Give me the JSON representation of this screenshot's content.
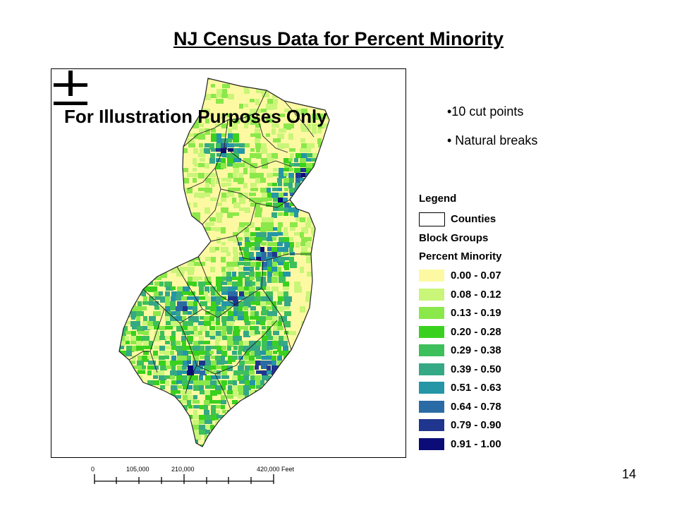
{
  "slide": {
    "title": "NJ Census Data for Percent Minority",
    "page_number": "14"
  },
  "map": {
    "watermark": "For Illustration Purposes Only",
    "north_arrow_icon": "north-arrow-icon",
    "scale_bar": {
      "labels": [
        "0",
        "105,000",
        "210,000",
        "420,000 Feet"
      ]
    }
  },
  "bullets": [
    "•10 cut points",
    "• Natural breaks"
  ],
  "legend": {
    "title": "Legend",
    "counties_label": "Counties",
    "block_groups_label": "Block Groups",
    "field_label": "Percent Minority",
    "classes": [
      {
        "label": "0.00 - 0.07",
        "color": "#FDF9A2"
      },
      {
        "label": "0.08 - 0.12",
        "color": "#C9F578"
      },
      {
        "label": "0.13 - 0.19",
        "color": "#8BE84A"
      },
      {
        "label": "0.20 - 0.28",
        "color": "#3AD11E"
      },
      {
        "label": "0.29 - 0.38",
        "color": "#3DBF5C"
      },
      {
        "label": "0.39 - 0.50",
        "color": "#35A885"
      },
      {
        "label": "0.51 - 0.63",
        "color": "#2496A6"
      },
      {
        "label": "0.64 - 0.78",
        "color": "#2A6BA5"
      },
      {
        "label": "0.79 - 0.90",
        "color": "#20368E"
      },
      {
        "label": "0.91 - 1.00",
        "color": "#0C0C78"
      }
    ]
  }
}
